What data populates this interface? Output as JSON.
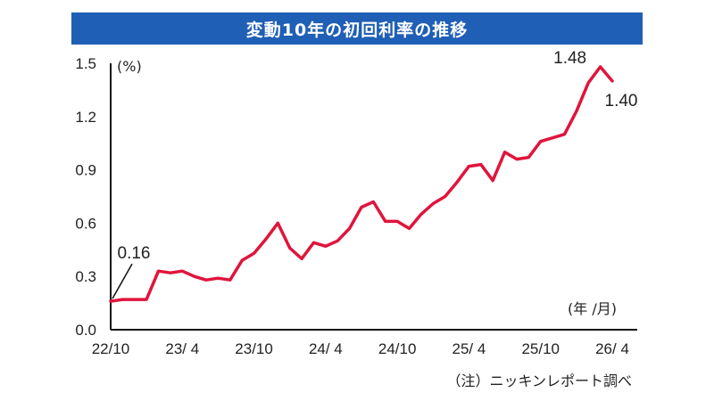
{
  "colors": {
    "title_bg": "#1f5fb5",
    "line": "#e0143c",
    "axis": "#111111"
  },
  "note": "（注）ニッキンレポート調べ",
  "chart_data": {
    "type": "line",
    "title": "変動10年の初回利率の推移",
    "ylabel": "(%)",
    "xlabel": "(年 /月)",
    "ylim": [
      0.0,
      1.5
    ],
    "yticks": [
      "0.0",
      "0.3",
      "0.6",
      "0.9",
      "1.2",
      "1.5"
    ],
    "yticks_values": [
      0.0,
      0.3,
      0.6,
      0.9,
      1.2,
      1.5
    ],
    "xticks": [
      "22/10",
      "23/ 4",
      "23/10",
      "24/ 4",
      "24/10",
      "25/ 4",
      "25/10",
      "26/ 4"
    ],
    "grid": false,
    "x": [
      "22/10",
      "22/11",
      "22/12",
      "23/1",
      "23/2",
      "23/3",
      "23/4",
      "23/5",
      "23/6",
      "23/7",
      "23/8",
      "23/9",
      "23/10",
      "23/11",
      "23/12",
      "24/1",
      "24/2",
      "24/3",
      "24/4",
      "24/5",
      "24/6",
      "24/7",
      "24/8",
      "24/9",
      "24/10",
      "24/11",
      "24/12",
      "25/1",
      "25/2",
      "25/3",
      "25/4",
      "25/5",
      "25/6",
      "25/7",
      "25/8",
      "25/9",
      "25/10",
      "25/11",
      "25/12",
      "26/1",
      "26/2",
      "26/3",
      "26/4"
    ],
    "series": [
      {
        "values": [
          0.16,
          0.17,
          0.17,
          0.17,
          0.33,
          0.32,
          0.33,
          0.3,
          0.28,
          0.29,
          0.28,
          0.39,
          0.43,
          0.51,
          0.6,
          0.46,
          0.4,
          0.49,
          0.47,
          0.5,
          0.57,
          0.69,
          0.72,
          0.61,
          0.61,
          0.57,
          0.65,
          0.71,
          0.75,
          0.83,
          0.92,
          0.93,
          0.84,
          1.0,
          0.96,
          0.97,
          1.06,
          1.08,
          1.1,
          1.23,
          1.39,
          1.48,
          1.4
        ]
      }
    ],
    "annotations": [
      {
        "text": "0.16",
        "index": 0
      },
      {
        "text": "1.48",
        "index": 41
      },
      {
        "text": "1.40",
        "index": 42
      }
    ]
  }
}
